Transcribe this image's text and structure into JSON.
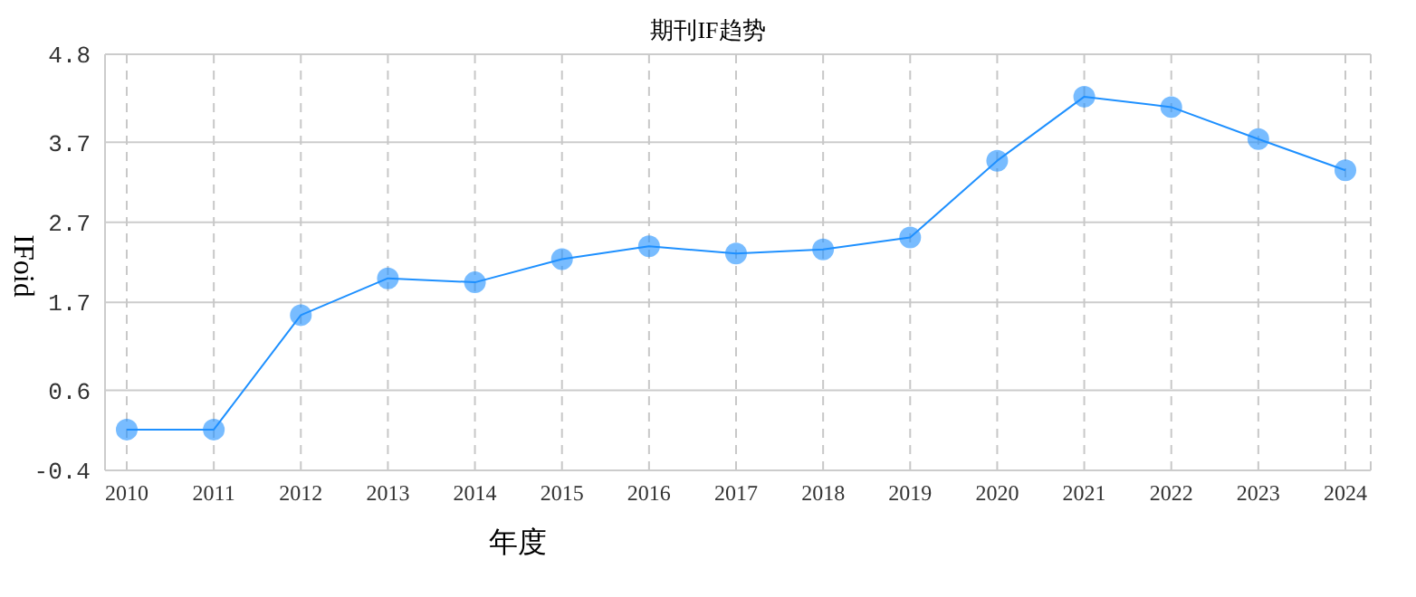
{
  "chart_data": {
    "type": "line",
    "title": "期刊IF趋势",
    "xlabel": "年度",
    "ylabel": "IFoid",
    "categories": [
      "2010",
      "2011",
      "2012",
      "2013",
      "2014",
      "2015",
      "2016",
      "2017",
      "2018",
      "2019",
      "2020",
      "2021",
      "2022",
      "2023",
      "2024"
    ],
    "series": [
      {
        "color": "#1e90ff",
        "values": [
          0.11,
          0.11,
          1.54,
          2.0,
          1.95,
          2.24,
          2.4,
          2.31,
          2.36,
          2.51,
          3.47,
          4.27,
          4.14,
          3.74,
          3.35
        ]
      }
    ],
    "ylim": [
      -0.4,
      4.8
    ],
    "yticks": [
      -0.4,
      0.6,
      1.7,
      2.7,
      3.7,
      4.8
    ],
    "grid": true,
    "marker": "circle",
    "line_style": "solid",
    "legend": false
  }
}
